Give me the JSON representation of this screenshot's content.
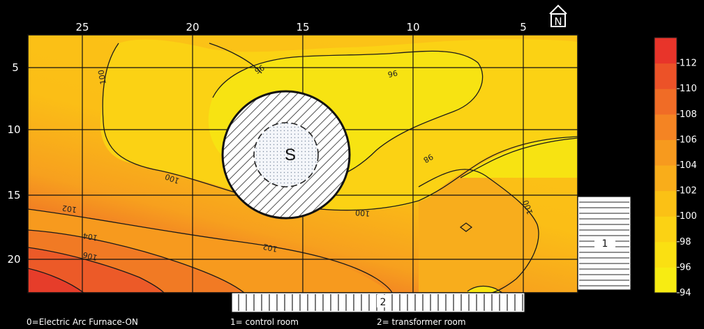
{
  "chart_data": {
    "type": "heatmap",
    "x_ticks": [
      "25",
      "20",
      "15",
      "10",
      "5"
    ],
    "y_ticks": [
      "5",
      "10",
      "15",
      "20"
    ],
    "colorbar": {
      "ticks": [
        "94",
        "96",
        "98",
        "100",
        "102",
        "104",
        "106",
        "108",
        "110",
        "112"
      ],
      "colors": [
        "#f7ec12",
        "#fae012",
        "#fbd214",
        "#fbc115",
        "#f9ad1a",
        "#f79a1e",
        "#f48423",
        "#f06c26",
        "#ec5228",
        "#e8342a"
      ]
    },
    "contour_levels": [
      "96",
      "96",
      "98",
      "98",
      "100",
      "100",
      "100",
      "102",
      "102",
      "104",
      "106"
    ],
    "source_label": "S",
    "rooms": [
      {
        "number": "1",
        "caption": "1= control room"
      },
      {
        "number": "2",
        "caption": "2= transformer room"
      }
    ],
    "legend_caption": "0=Electric Arc Furnace-ON",
    "north_symbol": "N",
    "colors": {
      "background": "#000000",
      "plot_border": "#111111"
    }
  }
}
